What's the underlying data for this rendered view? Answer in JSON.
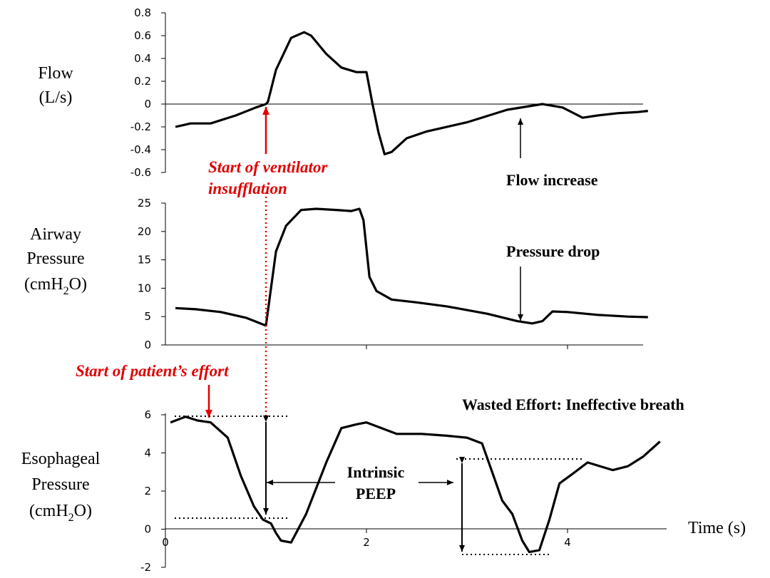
{
  "colors": {
    "curve": "#000000",
    "annotation": "#e00000"
  },
  "chart_data": [
    {
      "type": "line",
      "panel": "flow",
      "ylabel": [
        "Flow",
        "(L/s)"
      ],
      "ylim": [
        -0.6,
        0.8
      ],
      "yticks": [
        "0.8",
        "0.6",
        "0.4",
        "0.2",
        "0",
        "-0.2",
        "-0.4",
        "-0.6"
      ],
      "xlim": [
        0,
        4.8
      ],
      "series": [
        {
          "x": [
            0.1,
            0.25,
            0.45,
            0.7,
            0.9,
            1.0,
            1.02,
            1.1,
            1.25,
            1.38,
            1.45,
            1.6,
            1.75,
            1.9,
            2.0,
            2.06,
            2.12,
            2.18,
            2.25,
            2.4,
            2.6,
            3.0,
            3.4,
            3.75,
            3.95,
            4.15,
            4.3,
            4.5,
            4.7,
            4.8
          ],
          "y": [
            -0.2,
            -0.17,
            -0.17,
            -0.1,
            -0.03,
            0.0,
            0.02,
            0.3,
            0.58,
            0.63,
            0.6,
            0.44,
            0.32,
            0.28,
            0.28,
            0.0,
            -0.25,
            -0.44,
            -0.42,
            -0.3,
            -0.24,
            -0.16,
            -0.05,
            0.0,
            -0.03,
            -0.12,
            -0.1,
            -0.08,
            -0.07,
            -0.06
          ]
        }
      ]
    },
    {
      "type": "line",
      "panel": "airway_pressure",
      "ylabel": [
        "Airway",
        "Pressure",
        "(cmH",
        "2",
        "O)"
      ],
      "ylim": [
        0,
        25
      ],
      "yticks": [
        "25",
        "20",
        "15",
        "10",
        "5",
        "0"
      ],
      "xlim": [
        0,
        4.8
      ],
      "xticks": [
        2,
        4
      ],
      "series": [
        {
          "x": [
            0.1,
            0.3,
            0.55,
            0.8,
            1.0,
            1.05,
            1.1,
            1.2,
            1.35,
            1.5,
            1.7,
            1.85,
            1.93,
            1.97,
            2.03,
            2.1,
            2.25,
            2.5,
            2.8,
            3.2,
            3.5,
            3.65,
            3.75,
            3.85,
            4.0,
            4.3,
            4.6,
            4.8
          ],
          "y": [
            6.5,
            6.3,
            5.8,
            4.8,
            3.4,
            10.0,
            16.5,
            21.0,
            23.8,
            24.0,
            23.8,
            23.6,
            24.0,
            22.0,
            12.0,
            9.5,
            8.0,
            7.5,
            6.8,
            5.5,
            4.2,
            3.8,
            4.2,
            5.9,
            5.8,
            5.3,
            5.0,
            4.9
          ]
        }
      ]
    },
    {
      "type": "line",
      "panel": "esophageal_pressure",
      "ylabel": [
        "Esophageal",
        "Pressure",
        "(cmH",
        "2",
        "O)"
      ],
      "xlabel": "Time (s)",
      "ylim": [
        -2,
        6
      ],
      "yticks": [
        "6",
        "4",
        "2",
        "0",
        "-2"
      ],
      "xlim": [
        0,
        4.8
      ],
      "xticks": [
        "0",
        "2",
        "4"
      ],
      "series": [
        {
          "x": [
            0.05,
            0.2,
            0.32,
            0.45,
            0.62,
            0.75,
            0.88,
            0.97,
            1.05,
            1.1,
            1.15,
            1.25,
            1.4,
            1.6,
            1.75,
            1.9,
            2.0,
            2.3,
            2.55,
            2.8,
            3.0,
            3.15,
            3.25,
            3.35,
            3.45,
            3.55,
            3.62,
            3.72,
            3.82,
            3.92,
            4.05,
            4.2,
            4.45,
            4.6,
            4.75,
            4.92
          ],
          "y": [
            5.6,
            5.9,
            5.7,
            5.6,
            4.8,
            2.8,
            1.2,
            0.5,
            0.3,
            -0.2,
            -0.6,
            -0.7,
            0.8,
            3.5,
            5.3,
            5.5,
            5.6,
            5.0,
            5.0,
            4.9,
            4.8,
            4.5,
            3.0,
            1.5,
            0.8,
            -0.6,
            -1.2,
            -1.1,
            0.5,
            2.4,
            2.9,
            3.5,
            3.1,
            3.3,
            3.8,
            4.6
          ]
        }
      ]
    }
  ],
  "annotations": {
    "start_ventilator": [
      "Start of ventilator",
      "insufflation"
    ],
    "flow_increase": "Flow increase",
    "pressure_drop": "Pressure drop",
    "start_patient": "Start of patient’s effort",
    "wasted_effort": "Wasted Effort: Ineffective breath",
    "intrinsic_peep": [
      "Intrinsic",
      "PEEP"
    ]
  }
}
